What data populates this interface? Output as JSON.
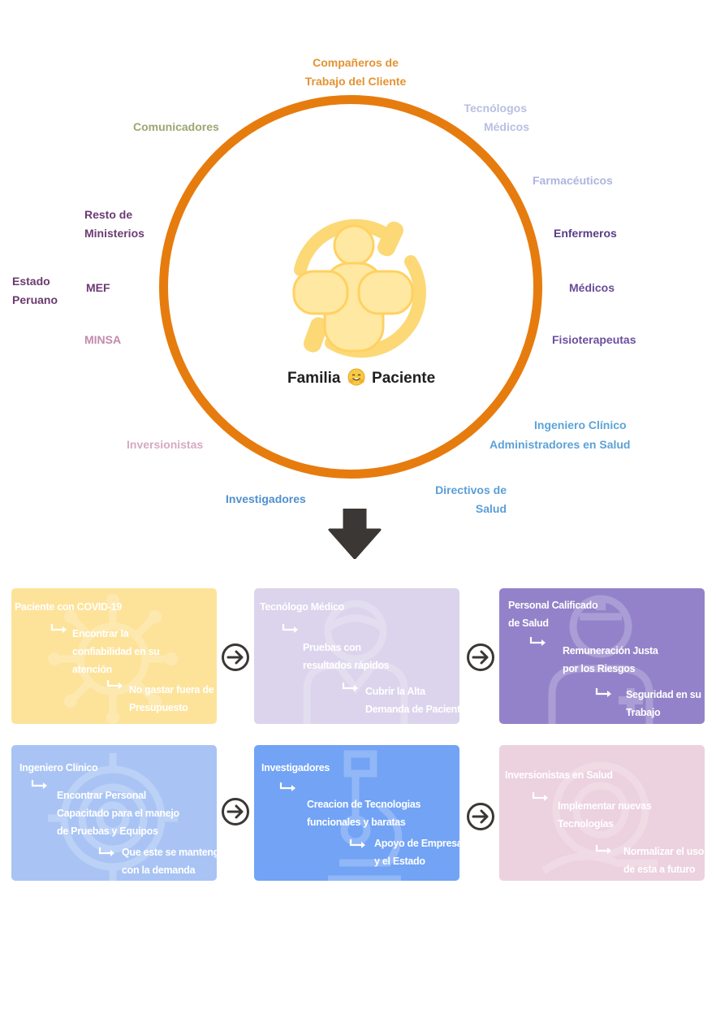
{
  "diagram": {
    "center_label_left": "Familia",
    "center_label_right": "Paciente",
    "labels": {
      "companeros": [
        "Compañeros de",
        "Trabajo del Cliente"
      ],
      "tecnologos": [
        "Tecnólogos",
        "Médicos"
      ],
      "comunicadores": "Comunicadores",
      "farmaceuticos": "Farmacéuticos",
      "resto": [
        "Resto de",
        "Ministerios"
      ],
      "enfermeros": "Enfermeros",
      "estado": [
        "Estado",
        "Peruano"
      ],
      "mef": "MEF",
      "medicos": "Médicos",
      "minsa": "MINSA",
      "fisioterapeutas": "Fisioterapeutas",
      "ingeniero": "Ingeniero Clínico",
      "administradores": "Administradores en Salud",
      "inversionistas": "Inversionistas",
      "investigadores": "Investigadores",
      "directivos": [
        "Directivos de",
        "Salud"
      ]
    },
    "colors": {
      "ring": "#e67c0e",
      "companeros": "#e39333",
      "tecnologos": "#b9bfe0",
      "comunicadores": "#9aa870",
      "farmaceuticos": "#aeb5df",
      "resto": "#6c3b74",
      "enfermeros": "#5a3d85",
      "estado": "#6a3a6f",
      "mef": "#6d3a76",
      "medicos": "#6a4b9a",
      "minsa": "#c28aad",
      "fisioterapeutas": "#6d4ea0",
      "ingeniero": "#5ba4d8",
      "administradores": "#5ca1d7",
      "inversionistas": "#d6a9c2",
      "investigadores": "#4f90cf",
      "directivos": "#5a9fd7"
    }
  },
  "cards": [
    {
      "color": "#fde39a",
      "title": "Paciente con COVID-19",
      "point1": [
        "Encontrar la",
        "confiabilidad en su",
        "atención"
      ],
      "point2": [
        "No gastar fuera de su",
        "Presupuesto"
      ]
    },
    {
      "color": "#dbd4ec",
      "title": "Tecnólogo Médico",
      "point1": [
        "Pruebas con",
        "resultados rápidos"
      ],
      "point2": [
        "Cubrir la Alta",
        "Demanda de Pacientes"
      ]
    },
    {
      "color": "#9382c9",
      "title": [
        "Personal Calificado",
        "de Salud"
      ],
      "point1": [
        "Remuneración Justa",
        "por los Riesgos"
      ],
      "point2": [
        "Seguridad en su",
        "Trabajo"
      ]
    },
    {
      "color": "#a9c4f4",
      "title": "Ingeniero Clínico",
      "point1": [
        "Encontrar Personal",
        "Capacitado para el manejo",
        "de Pruebas y Equipos"
      ],
      "point2": [
        "Que este se mantenga",
        "con la demanda"
      ]
    },
    {
      "color": "#72a3f5",
      "title": "Investigadores",
      "point1": [
        "Creacion de Tecnologias",
        "funcionales y baratas"
      ],
      "point2": [
        "Apoyo de Empresas",
        "y el Estado"
      ]
    },
    {
      "color": "#ecd1de",
      "title": "Inversionistas en Salud",
      "point1": [
        "Implementar nuevas",
        "Tecnologías"
      ],
      "point2": [
        "Normalizar el uso",
        "de esta a futuro"
      ]
    }
  ]
}
